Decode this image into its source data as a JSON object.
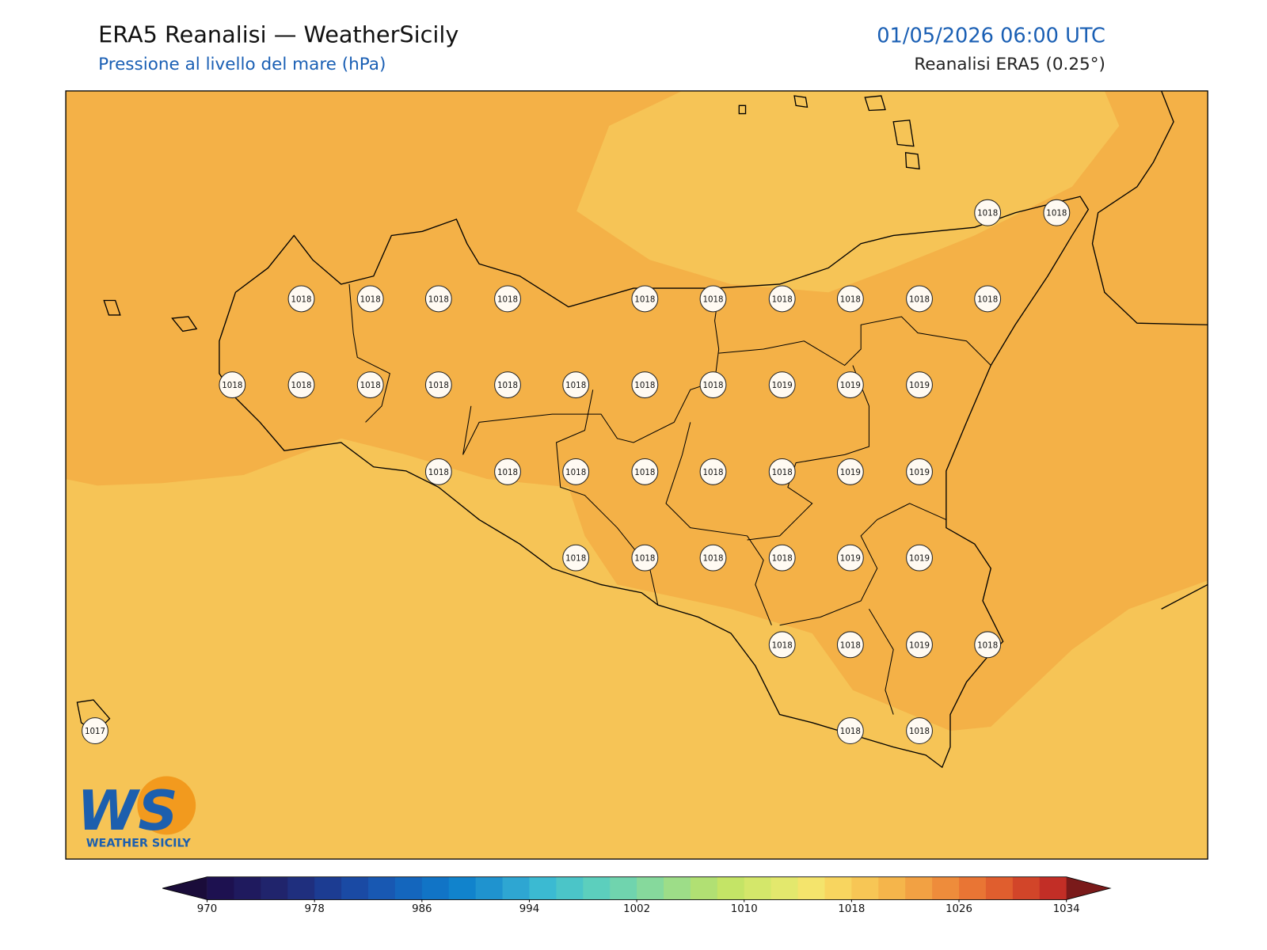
{
  "header": {
    "title": "ERA5 Reanalisi — WeatherSicily",
    "subtitle": "Pressione al livello del mare (hPa)",
    "datetime": "01/05/2026 06:00 UTC",
    "source": "Reanalisi ERA5 (0.25°)"
  },
  "stations": [
    1018,
    1018,
    1018,
    1018,
    1018,
    1018,
    1018,
    1018,
    1018,
    1018,
    1018,
    1018,
    1018,
    1018,
    1018,
    1018,
    1018,
    1018,
    1018,
    1018,
    1019,
    1019,
    1019,
    1018,
    1018,
    1018,
    1018,
    1018,
    1018,
    1019,
    1019,
    1018,
    1018,
    1018,
    1018,
    1019,
    1019,
    1018,
    1018,
    1019,
    1018,
    1017,
    1018,
    1018
  ],
  "colorbar": {
    "ticks": [
      970,
      978,
      986,
      994,
      1002,
      1010,
      1018,
      1026,
      1034
    ],
    "colors": [
      "#1d1150",
      "#1f1a5e",
      "#20246c",
      "#1f2f7e",
      "#1c3c92",
      "#1a4aa4",
      "#1858b2",
      "#1466bd",
      "#1174c6",
      "#1183cc",
      "#1f93cf",
      "#2ea6d2",
      "#3bbad2",
      "#4bc5c8",
      "#5ccfbd",
      "#70d4ae",
      "#86d99c",
      "#9ddd88",
      "#b1e073",
      "#c4e466",
      "#d4e76a",
      "#e3e86d",
      "#f4e46c",
      "#f8d55f",
      "#f7c655",
      "#f5b54b",
      "#f2a143",
      "#ee8c3b",
      "#e97534",
      "#e05e2e",
      "#d24529",
      "#c22e26"
    ],
    "under": "#1a0c3a",
    "over": "#7a1a1a"
  },
  "logo": {
    "mark": "WS",
    "name": "WEATHER SICILY"
  }
}
